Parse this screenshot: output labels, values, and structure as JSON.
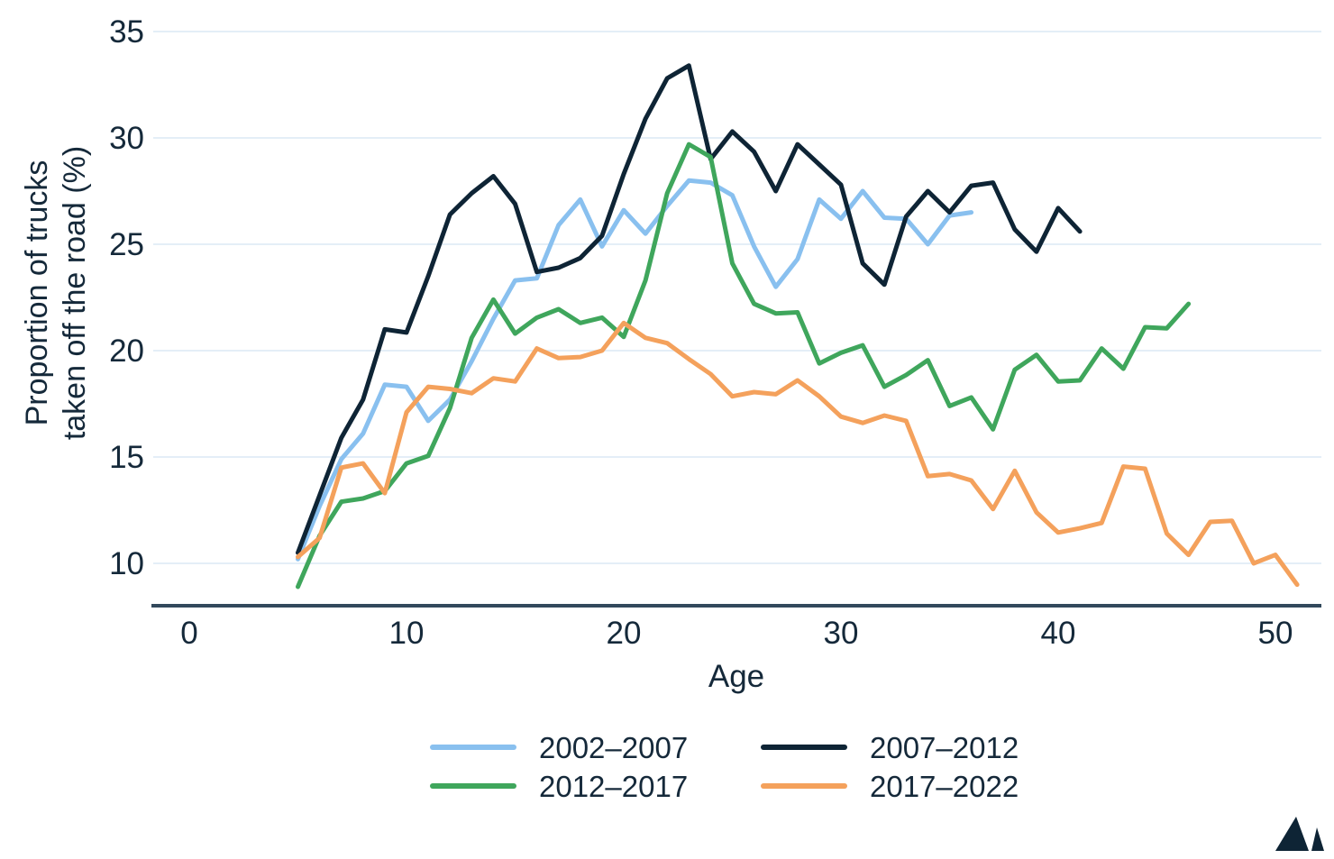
{
  "page": {
    "background": "#ffffff",
    "text_color": "#15293a",
    "gridline_color": "#e4eef7",
    "axis_line_color": "#32495c"
  },
  "chart_data": {
    "type": "line",
    "title": "",
    "xlabel": "Age",
    "ylabel_lines": [
      "Proportion of trucks",
      "taken off the road (%)"
    ],
    "x_ticks": [
      0,
      10,
      20,
      30,
      40,
      50
    ],
    "y_ticks": [
      10,
      15,
      20,
      25,
      30,
      35
    ],
    "xlim": [
      0,
      52
    ],
    "ylim": [
      8,
      35
    ],
    "grid": "horizontal-only",
    "legend_position": "bottom",
    "series": [
      {
        "name": "2002–2007",
        "color": "#89c0ef",
        "x_start": 5,
        "x_step": 1,
        "values": [
          10.2,
          12.7,
          14.9,
          16.1,
          18.4,
          18.3,
          16.7,
          17.7,
          19.5,
          21.5,
          23.3,
          23.4,
          25.9,
          27.1,
          24.9,
          26.6,
          25.5,
          26.8,
          28.0,
          27.9,
          27.3,
          24.9,
          23.0,
          24.3,
          27.1,
          26.2,
          27.5,
          26.25,
          26.2,
          25.0,
          26.35,
          26.5
        ]
      },
      {
        "name": "2007–2012",
        "color": "#0e2435",
        "x_start": 5,
        "x_step": 1,
        "values": [
          10.5,
          13.2,
          15.9,
          17.7,
          21.0,
          20.85,
          23.5,
          26.4,
          27.4,
          28.2,
          26.9,
          23.7,
          23.9,
          24.35,
          25.4,
          28.3,
          30.9,
          32.8,
          33.4,
          29.0,
          30.3,
          29.35,
          27.5,
          29.7,
          28.75,
          27.8,
          24.1,
          23.1,
          26.3,
          27.5,
          26.5,
          27.75,
          27.9,
          25.7,
          24.65,
          26.7,
          25.6
        ]
      },
      {
        "name": "2012–2017",
        "color": "#3fa65c",
        "x_start": 5,
        "x_step": 1,
        "values": [
          8.9,
          11.3,
          12.9,
          13.05,
          13.4,
          14.7,
          15.05,
          17.3,
          20.6,
          22.4,
          20.8,
          21.55,
          21.95,
          21.3,
          21.55,
          20.65,
          23.3,
          27.4,
          29.7,
          29.1,
          24.1,
          22.2,
          21.75,
          21.8,
          19.4,
          19.9,
          20.25,
          18.3,
          18.85,
          19.55,
          17.4,
          17.8,
          16.3,
          19.1,
          19.8,
          18.55,
          18.6,
          20.1,
          19.15,
          21.1,
          21.05,
          22.2
        ]
      },
      {
        "name": "2017–2022",
        "color": "#f4a15c",
        "x_start": 5,
        "x_step": 1,
        "values": [
          10.3,
          11.2,
          14.5,
          14.7,
          13.3,
          17.1,
          18.3,
          18.2,
          18.0,
          18.7,
          18.55,
          20.1,
          19.65,
          19.7,
          20.0,
          21.3,
          20.6,
          20.35,
          19.6,
          18.9,
          17.85,
          18.05,
          17.95,
          18.6,
          17.85,
          16.9,
          16.6,
          16.95,
          16.7,
          14.1,
          14.2,
          13.9,
          12.55,
          14.35,
          12.4,
          11.45,
          11.65,
          11.9,
          14.55,
          14.45,
          11.4,
          10.4,
          11.95,
          12.0,
          10.0,
          10.4,
          9.0
        ]
      }
    ]
  },
  "legend": {
    "row1_col1": "2002–2007",
    "row1_col2": "2007–2012",
    "row2_col1": "2012–2017",
    "row2_col2": "2017–2022"
  },
  "logo": {
    "name": "mountain-logo",
    "color": "#0e2435"
  }
}
